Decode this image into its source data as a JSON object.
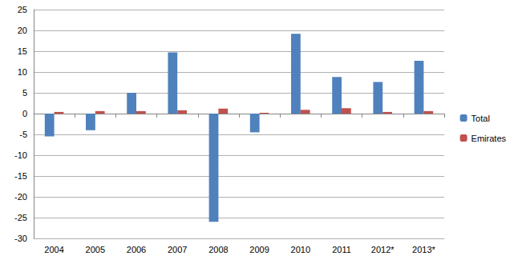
{
  "chart_data": {
    "type": "bar",
    "categories": [
      "2004",
      "2005",
      "2006",
      "2007",
      "2008",
      "2009",
      "2010",
      "2011",
      "2012*",
      "2013*"
    ],
    "series": [
      {
        "name": "Total",
        "color": "#4f81bd",
        "values": [
          -5.5,
          -4,
          5,
          14.7,
          -26,
          -4.5,
          19.2,
          8.8,
          7.6,
          12.7
        ]
      },
      {
        "name": "Emirates",
        "color": "#c0504d",
        "values": [
          0.4,
          0.6,
          0.6,
          0.8,
          1.2,
          0.2,
          0.9,
          1.3,
          0.4,
          0.6
        ]
      }
    ],
    "ylim": [
      -30,
      25
    ],
    "yticks": [
      -30,
      -25,
      -20,
      -15,
      -10,
      -5,
      0,
      5,
      10,
      15,
      20,
      25
    ],
    "grid": true,
    "legend": "right"
  }
}
